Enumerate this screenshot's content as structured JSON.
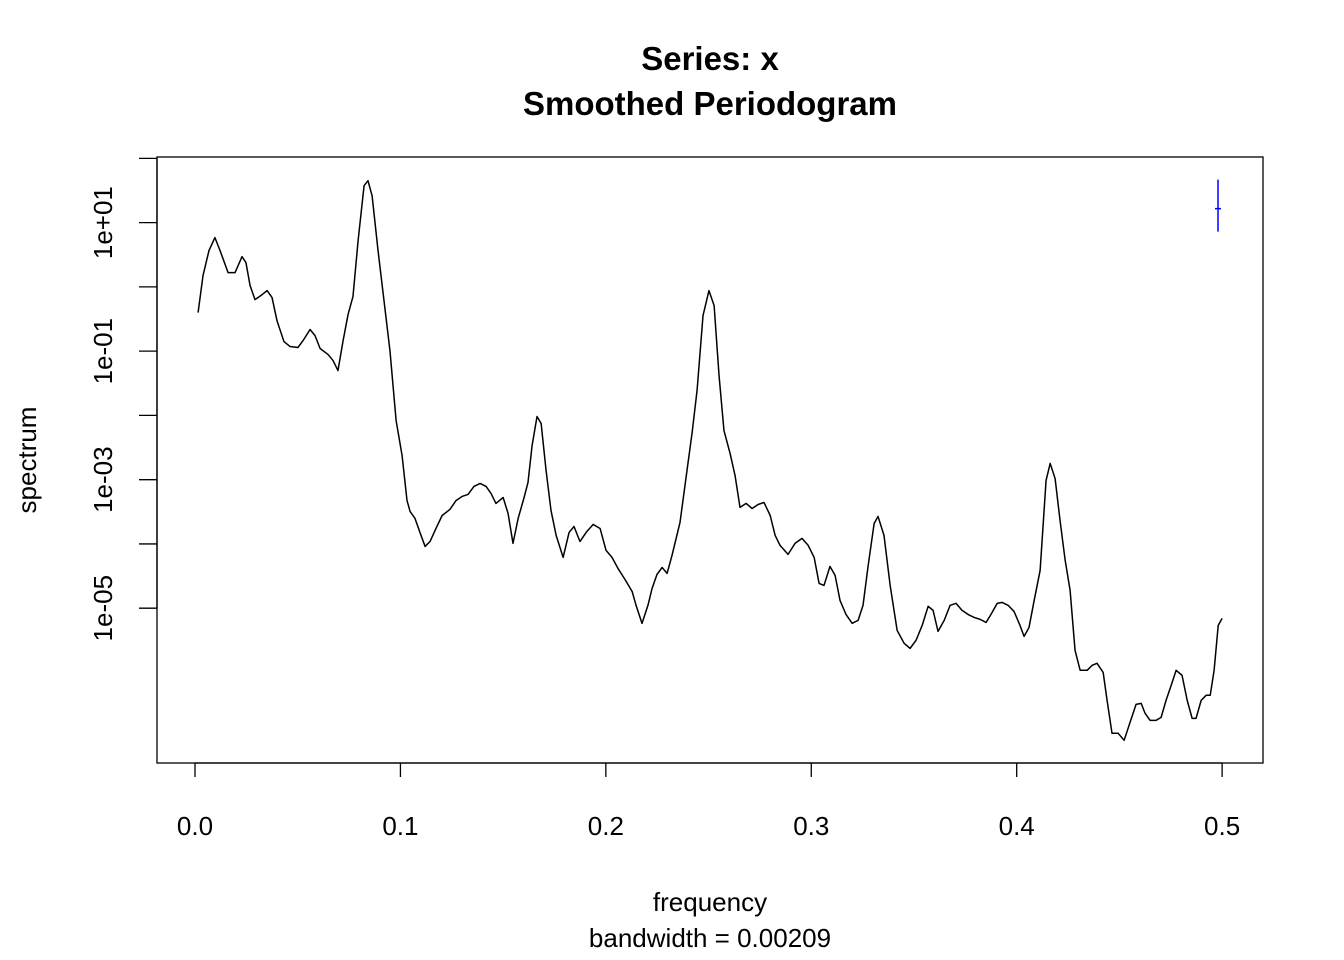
{
  "chart_data": {
    "type": "line",
    "title": "Series: x",
    "subtitle": "Smoothed Periodogram",
    "x_label": "frequency",
    "x_sublabel": "bandwidth = 0.00209",
    "y_label": "spectrum",
    "y_log": true,
    "color": "#000000",
    "xlim": [
      -0.0185,
      0.5199
    ],
    "ylim": [
      3.9e-08,
      105
    ],
    "xticks": [
      {
        "value": 0,
        "label": "0.0"
      },
      0.1,
      0.2,
      0.3,
      0.4,
      0.5
    ],
    "yticks": [
      {
        "value": 10,
        "label": "1e+01"
      },
      {
        "value": 0.1,
        "label": "1e-01"
      },
      {
        "value": 0.001,
        "label": "1e-03"
      },
      {
        "value": 1e-05,
        "label": "1e-05"
      }
    ],
    "yticks_minor": [
      100,
      1,
      0.01,
      0.0001
    ],
    "ci_bar": {
      "x": 0.498,
      "center": 16.5,
      "lower": 7.24,
      "upper": 46.7,
      "color": "#0000ff"
    },
    "x": [
      0.0015,
      0.0039,
      0.0068,
      0.0097,
      0.0122,
      0.0161,
      0.0195,
      0.0229,
      0.0248,
      0.0268,
      0.0292,
      0.0321,
      0.0351,
      0.0375,
      0.0399,
      0.0433,
      0.0463,
      0.0501,
      0.0526,
      0.056,
      0.0584,
      0.0609,
      0.0648,
      0.0672,
      0.0696,
      0.0721,
      0.0745,
      0.0769,
      0.0794,
      0.0823,
      0.0842,
      0.0862,
      0.0891,
      0.092,
      0.0949,
      0.0979,
      0.1008,
      0.1032,
      0.1047,
      0.1071,
      0.1095,
      0.112,
      0.1144,
      0.1173,
      0.1203,
      0.1241,
      0.1271,
      0.13,
      0.1329,
      0.1358,
      0.1388,
      0.1417,
      0.1441,
      0.1465,
      0.15,
      0.1524,
      0.1548,
      0.1573,
      0.1602,
      0.1621,
      0.1641,
      0.1665,
      0.1685,
      0.1709,
      0.1733,
      0.1758,
      0.1792,
      0.1821,
      0.1845,
      0.1874,
      0.1904,
      0.1938,
      0.1972,
      0.2001,
      0.203,
      0.2059,
      0.2093,
      0.2128,
      0.2147,
      0.2176,
      0.2205,
      0.2225,
      0.2249,
      0.2274,
      0.2298,
      0.2322,
      0.2361,
      0.2395,
      0.242,
      0.2444,
      0.2473,
      0.2502,
      0.2527,
      0.2551,
      0.2575,
      0.2605,
      0.2629,
      0.2653,
      0.2683,
      0.2712,
      0.2741,
      0.277,
      0.28,
      0.2824,
      0.2848,
      0.2887,
      0.2921,
      0.2955,
      0.2985,
      0.3014,
      0.3038,
      0.3062,
      0.3091,
      0.3116,
      0.314,
      0.3169,
      0.3199,
      0.3228,
      0.3252,
      0.3277,
      0.3306,
      0.3325,
      0.3354,
      0.3384,
      0.3418,
      0.3452,
      0.3481,
      0.351,
      0.354,
      0.3569,
      0.3593,
      0.3617,
      0.3647,
      0.3676,
      0.3705,
      0.3734,
      0.3763,
      0.3793,
      0.3822,
      0.3851,
      0.3875,
      0.3905,
      0.3929,
      0.3958,
      0.3987,
      0.4016,
      0.4036,
      0.406,
      0.4085,
      0.4114,
      0.4143,
      0.4163,
      0.4187,
      0.4211,
      0.4236,
      0.426,
      0.4284,
      0.4309,
      0.4343,
      0.4367,
      0.4391,
      0.4421,
      0.444,
      0.4464,
      0.4494,
      0.4523,
      0.4552,
      0.4581,
      0.4606,
      0.4625,
      0.4649,
      0.4679,
      0.4703,
      0.4727,
      0.4752,
      0.4776,
      0.4805,
      0.483,
      0.4854,
      0.4873,
      0.4898,
      0.4922,
      0.4942,
      0.4961,
      0.4981,
      0.5
    ],
    "values": [
      0.398,
      1.5,
      3.67,
      5.85,
      3.67,
      1.67,
      1.67,
      2.96,
      2.39,
      1.05,
      0.634,
      0.733,
      0.876,
      0.682,
      0.299,
      0.141,
      0.118,
      0.114,
      0.146,
      0.217,
      0.175,
      0.11,
      0.0885,
      0.0714,
      0.0499,
      0.146,
      0.371,
      0.706,
      5.25,
      37.6,
      45.0,
      26.3,
      3.67,
      0.612,
      0.102,
      0.00834,
      0.00238,
      0.000475,
      0.00032,
      0.000249,
      0.000151,
      9.14e-05,
      0.000109,
      0.000174,
      0.000277,
      0.000344,
      0.000475,
      0.000548,
      0.000589,
      0.000784,
      0.000873,
      0.000784,
      0.00061,
      0.000427,
      0.000528,
      0.000298,
      0.000102,
      0.000249,
      0.000528,
      0.000904,
      0.0034,
      0.00962,
      0.00748,
      0.00139,
      0.000332,
      0.000136,
      6.17e-05,
      0.000151,
      0.000187,
      0.000109,
      0.000151,
      0.000201,
      0.000174,
      7.93e-05,
      6.17e-05,
      4.16e-05,
      2.81e-05,
      1.82e-05,
      1.11e-05,
      5.81e-06,
      1.11e-05,
      2.03e-05,
      3.36e-05,
      4.31e-05,
      3.48e-05,
      6.62e-05,
      0.000216,
      0.00139,
      0.00542,
      0.0244,
      0.358,
      0.876,
      0.512,
      0.0418,
      0.00582,
      0.00255,
      0.00116,
      0.00037,
      0.000427,
      0.000356,
      0.000411,
      0.000442,
      0.000277,
      0.000136,
      9.48e-05,
      6.87e-05,
      0.000102,
      0.000122,
      9.48e-05,
      6.17e-05,
      2.43e-05,
      2.26e-05,
      4.47e-05,
      3.24e-05,
      1.32e-05,
      8.01e-06,
      5.81e-06,
      6.46e-06,
      1.11e-05,
      4.63e-05,
      0.000208,
      0.000268,
      0.000136,
      2.26e-05,
      4.52e-06,
      2.84e-06,
      2.37e-06,
      3.16e-06,
      5.41e-06,
      1.07e-05,
      9.25e-06,
      4.36e-06,
      6.46e-06,
      1.11e-05,
      1.19e-05,
      9.25e-06,
      8.01e-06,
      7.19e-06,
      6.7e-06,
      6.01e-06,
      8.01e-06,
      1.19e-05,
      1.23e-05,
      1.11e-05,
      8.91e-06,
      5.41e-06,
      3.64e-06,
      5.02e-06,
      1.32e-05,
      3.87e-05,
      0.000972,
      0.00179,
      0.00104,
      0.000232,
      5.54e-05,
      1.89e-05,
      2.21e-06,
      1.08e-06,
      1.08e-06,
      1.29e-06,
      1.39e-06,
      1e-06,
      3.68e-07,
      1.13e-07,
      1.13e-07,
      8.79e-08,
      1.68e-07,
      3.19e-07,
      3.3e-07,
      2.31e-07,
      1.8e-07,
      1.8e-07,
      2e-07,
      3.68e-07,
      6.3e-07,
      1.08e-06,
      9.01e-07,
      3.68e-07,
      1.93e-07,
      1.93e-07,
      3.68e-07,
      4.41e-07,
      4.41e-07,
      1.08e-06,
      5.41e-06,
      6.93e-06
    ]
  }
}
